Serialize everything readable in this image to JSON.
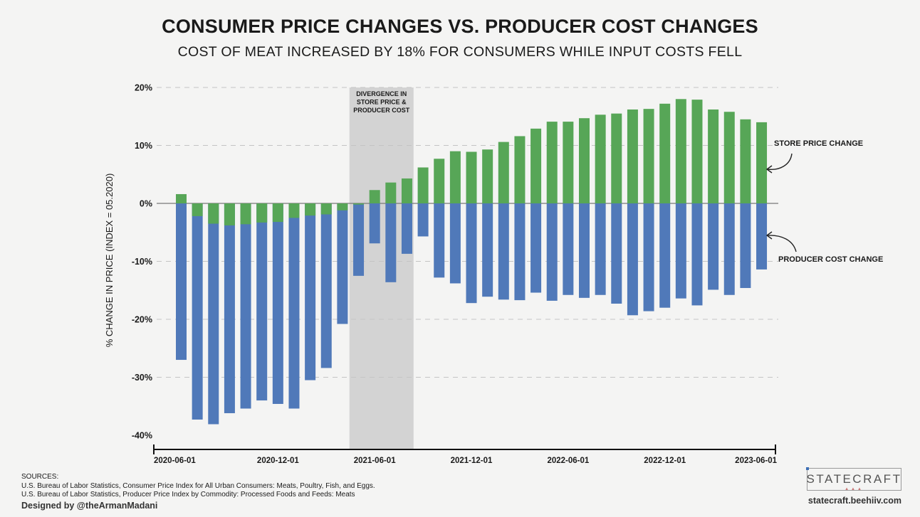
{
  "header": {
    "title": "CONSUMER PRICE CHANGES VS. PRODUCER COST CHANGES",
    "subtitle": "COST OF MEAT INCREASED BY 18% FOR CONSUMERS WHILE INPUT COSTS FELL"
  },
  "chart_data": {
    "type": "bar",
    "ylabel": "% CHANGE IN PRICE (INDEX = 05.2020)",
    "ylim": [
      -40,
      20
    ],
    "yticks": [
      20,
      10,
      0,
      -10,
      -20,
      -30,
      -40
    ],
    "ytick_labels": [
      "20%",
      "10%",
      "0%",
      "-10%",
      "-20%",
      "-30%",
      "-40%"
    ],
    "grid": "horizontal dashed",
    "categories": [
      "2020-06-01",
      "2020-07-01",
      "2020-08-01",
      "2020-09-01",
      "2020-10-01",
      "2020-11-01",
      "2020-12-01",
      "2021-01-01",
      "2021-02-01",
      "2021-03-01",
      "2021-04-01",
      "2021-05-01",
      "2021-06-01",
      "2021-07-01",
      "2021-08-01",
      "2021-09-01",
      "2021-10-01",
      "2021-11-01",
      "2021-12-01",
      "2022-01-01",
      "2022-02-01",
      "2022-03-01",
      "2022-04-01",
      "2022-05-01",
      "2022-06-01",
      "2022-07-01",
      "2022-08-01",
      "2022-09-01",
      "2022-10-01",
      "2022-11-01",
      "2022-12-01",
      "2023-01-01",
      "2023-02-01",
      "2023-03-01",
      "2023-04-01",
      "2023-05-01",
      "2023-06-01"
    ],
    "xtick_labels": [
      {
        "index": 0,
        "label": "2020-06-01"
      },
      {
        "index": 6,
        "label": "2020-12-01"
      },
      {
        "index": 12,
        "label": "2021-06-01"
      },
      {
        "index": 18,
        "label": "2021-12-01"
      },
      {
        "index": 24,
        "label": "2022-06-01"
      },
      {
        "index": 30,
        "label": "2022-12-01"
      },
      {
        "index": 36,
        "label": "2023-06-01"
      }
    ],
    "series": [
      {
        "name": "STORE PRICE CHANGE",
        "color": "#57a657",
        "values": [
          1.6,
          -2.2,
          -3.5,
          -3.8,
          -3.6,
          -3.3,
          -3.2,
          -2.5,
          -2.1,
          -1.9,
          -1.2,
          -0.2,
          2.3,
          3.6,
          4.3,
          6.2,
          7.7,
          9.0,
          8.9,
          9.3,
          10.6,
          11.6,
          12.9,
          14.1,
          14.1,
          14.7,
          15.3,
          15.5,
          16.2,
          16.3,
          17.2,
          18.0,
          17.9,
          16.2,
          15.8,
          14.5,
          14.0
        ]
      },
      {
        "name": "PRODUCER COST CHANGE",
        "color": "#5079b9",
        "values": [
          -27.0,
          -37.3,
          -38.1,
          -36.2,
          -35.4,
          -34.0,
          -34.6,
          -35.4,
          -30.5,
          -28.4,
          -20.8,
          -12.5,
          -6.9,
          -13.6,
          -8.7,
          -5.7,
          -12.8,
          -13.8,
          -17.2,
          -16.1,
          -16.6,
          -16.7,
          -15.4,
          -16.8,
          -15.8,
          -16.3,
          -15.8,
          -17.3,
          -19.3,
          -18.6,
          -18.0,
          -16.4,
          -17.6,
          -14.9,
          -15.8,
          -14.6,
          -11.4
        ]
      }
    ],
    "annotations": [
      {
        "text": "DIVERGENCE IN STORE PRICE & PRODUCER COST",
        "type": "shaded-region",
        "from_index": 11,
        "to_index": 14,
        "color": "#d3d3d3"
      },
      {
        "text": "STORE PRICE CHANGE",
        "type": "callout",
        "points_to": "store price bars"
      },
      {
        "text": "PRODUCER COST CHANGE",
        "type": "callout",
        "points_to": "producer cost bars"
      }
    ]
  },
  "footer": {
    "sources_label": "SOURCES:",
    "source_lines": [
      "U.S. Bureau of Labor Statistics, Consumer Price Index for All Urban Consumers: Meats, Poultry, Fish, and Eggs.",
      "U.S. Bureau of Labor Statistics, Producer Price Index by Commodity: Processed Foods and Feeds: Meats"
    ],
    "designer": "Designed by @theArmanMadani",
    "logo_text": "STATECRAFT",
    "site": "statecraft.beehiiv.com"
  }
}
